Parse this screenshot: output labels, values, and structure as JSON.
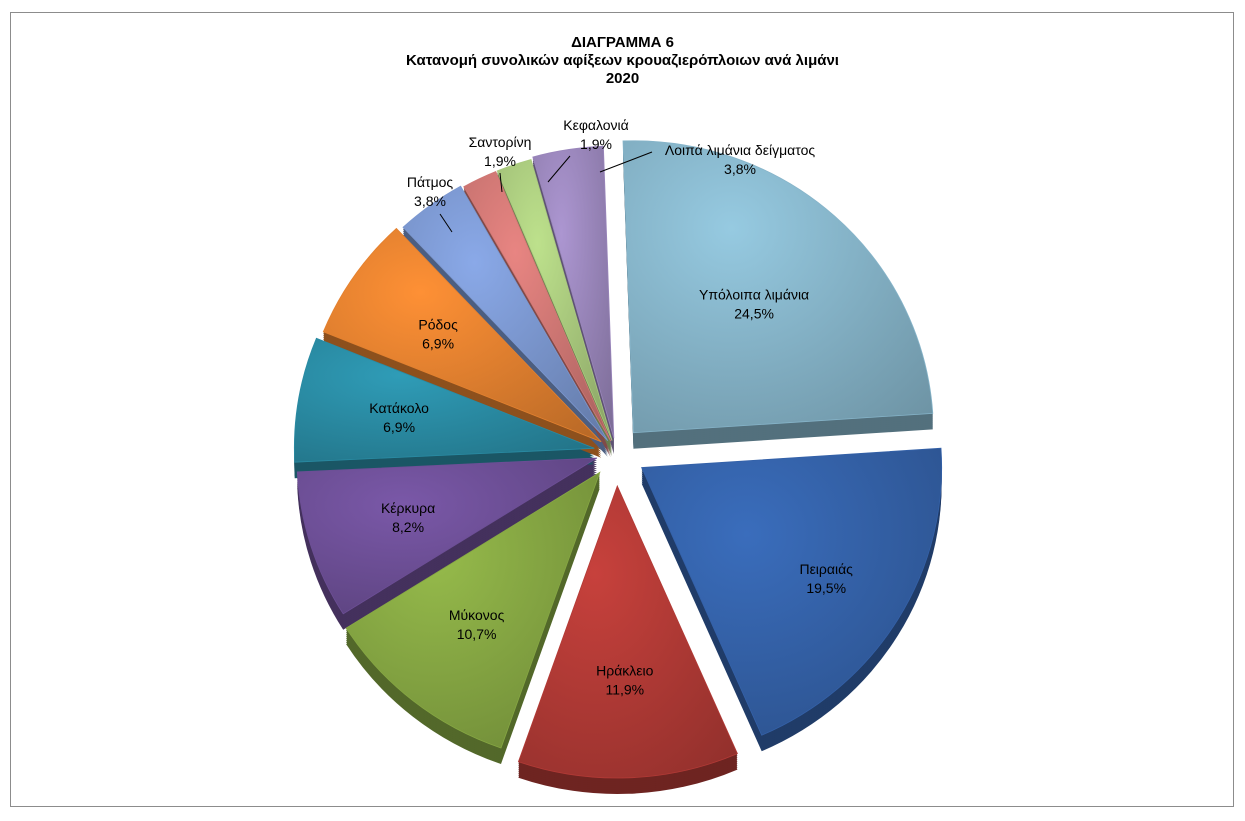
{
  "chart_data": {
    "type": "pie",
    "title": "ΔΙΑΓΡΑΜΜΑ 6",
    "subtitle": "Κατανομή συνολικών αφίξεων κρουαζιερόπλοιων ανά  λιμάνι",
    "year": "2020",
    "slices": [
      {
        "label": "Υπόλοιπα λιμάνια",
        "value": 24.5,
        "value_label": "24,5%",
        "color": "#86b4c9"
      },
      {
        "label": "Πειραιάς",
        "value": 19.5,
        "value_label": "19,5%",
        "color": "#3461a8"
      },
      {
        "label": "Ηράκλειο",
        "value": 11.9,
        "value_label": "11,9%",
        "color": "#b23a36"
      },
      {
        "label": "Μύκονος",
        "value": 10.7,
        "value_label": "10,7%",
        "color": "#86a743"
      },
      {
        "label": "Κέρκυρα",
        "value": 8.2,
        "value_label": "8,2%",
        "color": "#6d4f96"
      },
      {
        "label": "Κατάκολο",
        "value": 6.9,
        "value_label": "6,9%",
        "color": "#2a8ba3"
      },
      {
        "label": "Ρόδος",
        "value": 6.9,
        "value_label": "6,9%",
        "color": "#e3812f"
      },
      {
        "label": "Πάτμος",
        "value": 3.8,
        "value_label": "3,8%",
        "color": "#7b97cf"
      },
      {
        "label": "Σαντορίνη",
        "value": 1.9,
        "value_label": "1,9%",
        "color": "#cf7774"
      },
      {
        "label": "Κεφαλονιά",
        "value": 1.9,
        "value_label": "1,9%",
        "color": "#a9c97d"
      },
      {
        "label": "Λοιπά λιμάνια δείγματος",
        "value": 3.8,
        "value_label": "3,8%",
        "color": "#9a86bb"
      }
    ]
  }
}
